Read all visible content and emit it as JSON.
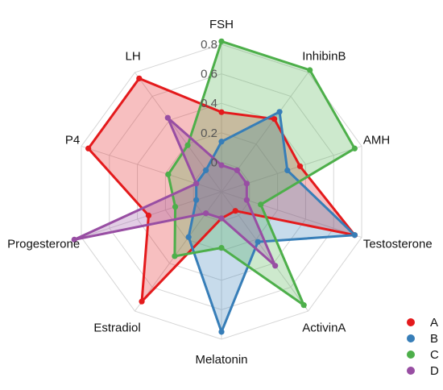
{
  "chart_data": {
    "type": "radar",
    "axes": [
      "FSH",
      "InhibinB",
      "AMH",
      "Testosterone",
      "ActivinA",
      "Melatonin",
      "Estradiol",
      "Progesterone",
      "P4",
      "LH"
    ],
    "rlim": [
      -0.2,
      0.8
    ],
    "ticks": [
      0,
      0.2,
      0.4,
      0.6,
      0.8
    ],
    "tick_labels": [
      "0",
      "0.2",
      "0.4",
      "0.6",
      "0.8"
    ],
    "grid": true,
    "legend_position": "bottom-right",
    "series": [
      {
        "name": "A",
        "color": "#E41A1C",
        "values": [
          0.34,
          0.41,
          0.36,
          0.75,
          -0.04,
          -0.02,
          0.72,
          0.32,
          0.75,
          0.75
        ]
      },
      {
        "name": "B",
        "color": "#377EB8",
        "values": [
          0.14,
          0.47,
          0.27,
          0.75,
          0.22,
          0.75,
          0.18,
          -0.02,
          -0.02,
          -0.02
        ]
      },
      {
        "name": "C",
        "color": "#4DAF4A",
        "values": [
          0.82,
          0.82,
          0.75,
          0.08,
          0.75,
          0.18,
          0.34,
          0.13,
          0.18,
          0.19
        ]
      },
      {
        "name": "D",
        "color": "#984EA3",
        "values": [
          -0.02,
          -0.02,
          -0.02,
          -0.02,
          0.42,
          -0.02,
          -0.02,
          0.85,
          -0.02,
          0.42
        ]
      }
    ]
  }
}
